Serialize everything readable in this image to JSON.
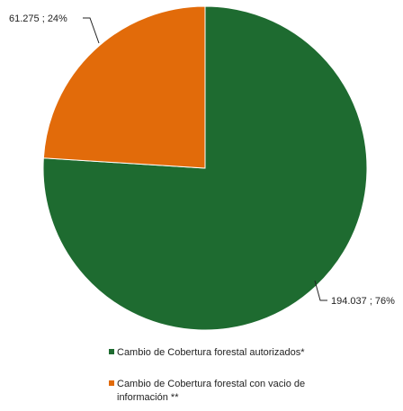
{
  "chart_data": {
    "type": "pie",
    "slices": [
      {
        "name": "Cambio de Cobertura forestal autorizados*",
        "value": 194037,
        "percent": 76,
        "label": "194.037 ; 76%",
        "color": "#1e6b30"
      },
      {
        "name": "Cambio de Cobertura forestal con vacio de información **",
        "value": 61275,
        "percent": 24,
        "label": "61.275 ; 24%",
        "color": "#e26b0a"
      }
    ],
    "legend": {
      "placement": "bottom",
      "entries": [
        {
          "lines": [
            "Cambio de Cobertura forestal autorizados*"
          ],
          "color": "#1e6b30"
        },
        {
          "lines": [
            "Cambio de Cobertura forestal con vacio de",
            "información **"
          ],
          "color": "#e26b0a"
        }
      ]
    }
  }
}
